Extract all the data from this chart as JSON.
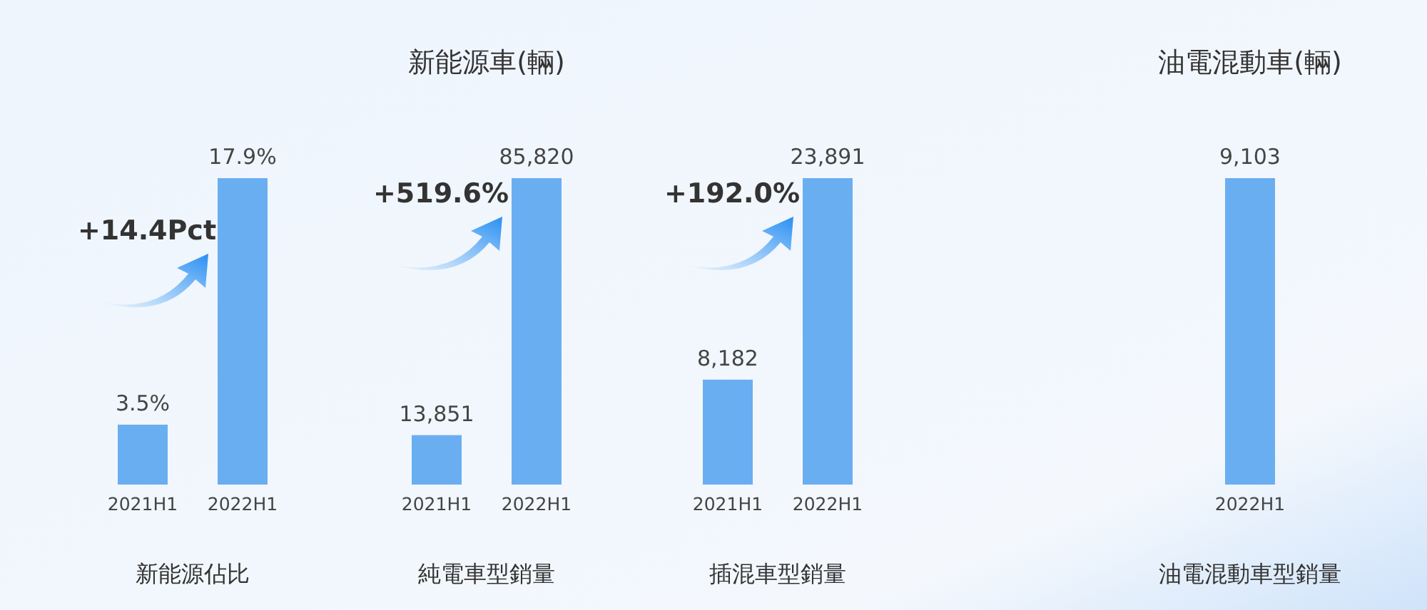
{
  "chart_data": [
    {
      "type": "bar",
      "xlabel": "新能源佔比",
      "categories": [
        "2021H1",
        "2022H1"
      ],
      "values": [
        3.5,
        17.9
      ],
      "value_labels": [
        "3.5%",
        "17.9%"
      ],
      "color": "#6aaef2",
      "annotations": [
        "+14.4Pct"
      ]
    },
    {
      "type": "bar",
      "title": "新能源車(輛)",
      "xlabel": "純電車型銷量",
      "categories": [
        "2021H1",
        "2022H1"
      ],
      "values": [
        13851,
        85820
      ],
      "value_labels": [
        "13,851",
        "85,820"
      ],
      "color": "#6aaef2",
      "annotations": [
        "+519.6%"
      ]
    },
    {
      "type": "bar",
      "xlabel": "插混車型銷量",
      "categories": [
        "2021H1",
        "2022H1"
      ],
      "values": [
        8182,
        23891
      ],
      "value_labels": [
        "8,182",
        "23,891"
      ],
      "color": "#6aaef2",
      "annotations": [
        "+192.0%"
      ]
    },
    {
      "type": "bar",
      "title": "油電混動車(輛)",
      "xlabel": "油電混動車型銷量",
      "categories": [
        "2022H1"
      ],
      "values": [
        9103
      ],
      "value_labels": [
        "9,103"
      ],
      "color": "#6aaef2"
    }
  ]
}
